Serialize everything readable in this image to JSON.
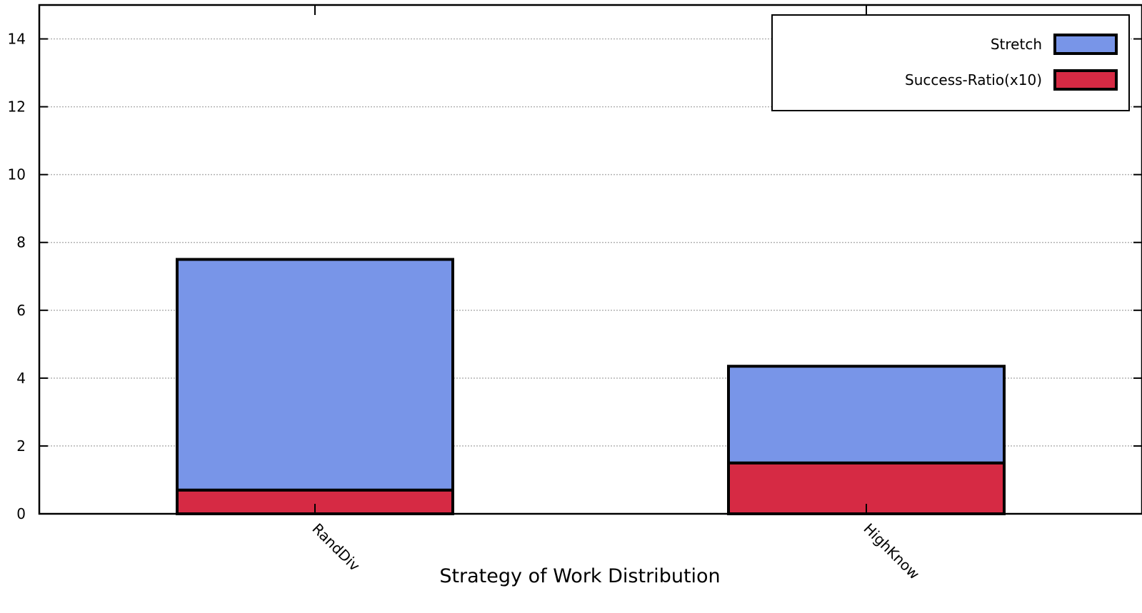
{
  "chart_data": {
    "type": "bar",
    "stacked": true,
    "title": "",
    "xlabel": "Strategy of Work Distribution",
    "ylabel": "",
    "categories": [
      "RandDiv",
      "HighKnow"
    ],
    "series": [
      {
        "name": "Success-Ratio(x10)",
        "values": [
          0.7,
          1.5
        ],
        "color": "#d62a44"
      },
      {
        "name": "Stretch",
        "values": [
          6.8,
          2.85
        ],
        "color": "#7895e8"
      }
    ],
    "ylim": [
      0,
      15
    ],
    "yticks": [
      0,
      2,
      4,
      6,
      8,
      10,
      12,
      14
    ],
    "grid": true,
    "legend_position": "top-right",
    "legend_order": [
      "Stretch",
      "Success-Ratio(x10)"
    ]
  }
}
